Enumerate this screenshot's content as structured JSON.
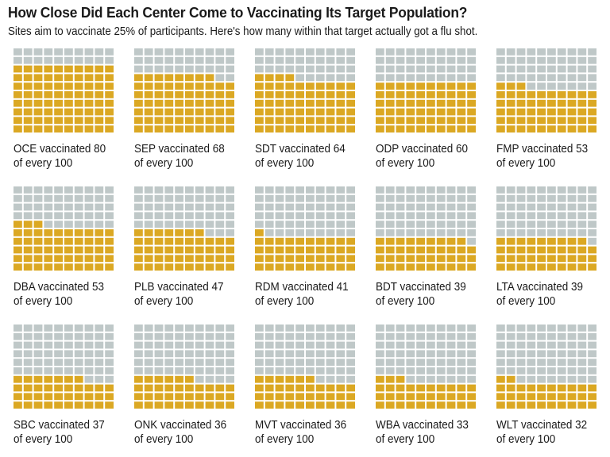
{
  "title": "How Close Did Each Center Come to Vaccinating Its Target Population?",
  "subtitle": "Sites aim to vaccinate 25% of participants. Here's how many within that target actually got a flu shot.",
  "colors": {
    "filled": "#dba823",
    "empty": "#bfc8c8",
    "gap": "#ffffff"
  },
  "chart_data": {
    "type": "waffle",
    "grid": {
      "rows": 10,
      "cols": 10
    },
    "total": 100,
    "label_suffix": "of every 100",
    "sites": [
      {
        "name": "OCE",
        "value": 80,
        "label": "OCE vaccinated 80"
      },
      {
        "name": "SEP",
        "value": 68,
        "label": "SEP vaccinated 68"
      },
      {
        "name": "SDT",
        "value": 64,
        "label": "SDT vaccinated 64"
      },
      {
        "name": "ODP",
        "value": 60,
        "label": "ODP vaccinated 60"
      },
      {
        "name": "FMP",
        "value": 53,
        "label": "FMP vaccinated 53"
      },
      {
        "name": "DBA",
        "value": 53,
        "label": "DBA vaccinated 53"
      },
      {
        "name": "PLB",
        "value": 47,
        "label": "PLB vaccinated 47"
      },
      {
        "name": "RDM",
        "value": 41,
        "label": "RDM vaccinated 41"
      },
      {
        "name": "BDT",
        "value": 39,
        "label": "BDT vaccinated 39"
      },
      {
        "name": "LTA",
        "value": 39,
        "label": "LTA vaccinated 39"
      },
      {
        "name": "SBC",
        "value": 37,
        "label": "SBC vaccinated 37"
      },
      {
        "name": "ONK",
        "value": 36,
        "label": "ONK vaccinated 36"
      },
      {
        "name": "MVT",
        "value": 36,
        "label": "MVT vaccinated 36"
      },
      {
        "name": "WBA",
        "value": 33,
        "label": "WBA vaccinated 33"
      },
      {
        "name": "WLT",
        "value": 32,
        "label": "WLT vaccinated 32"
      }
    ]
  }
}
